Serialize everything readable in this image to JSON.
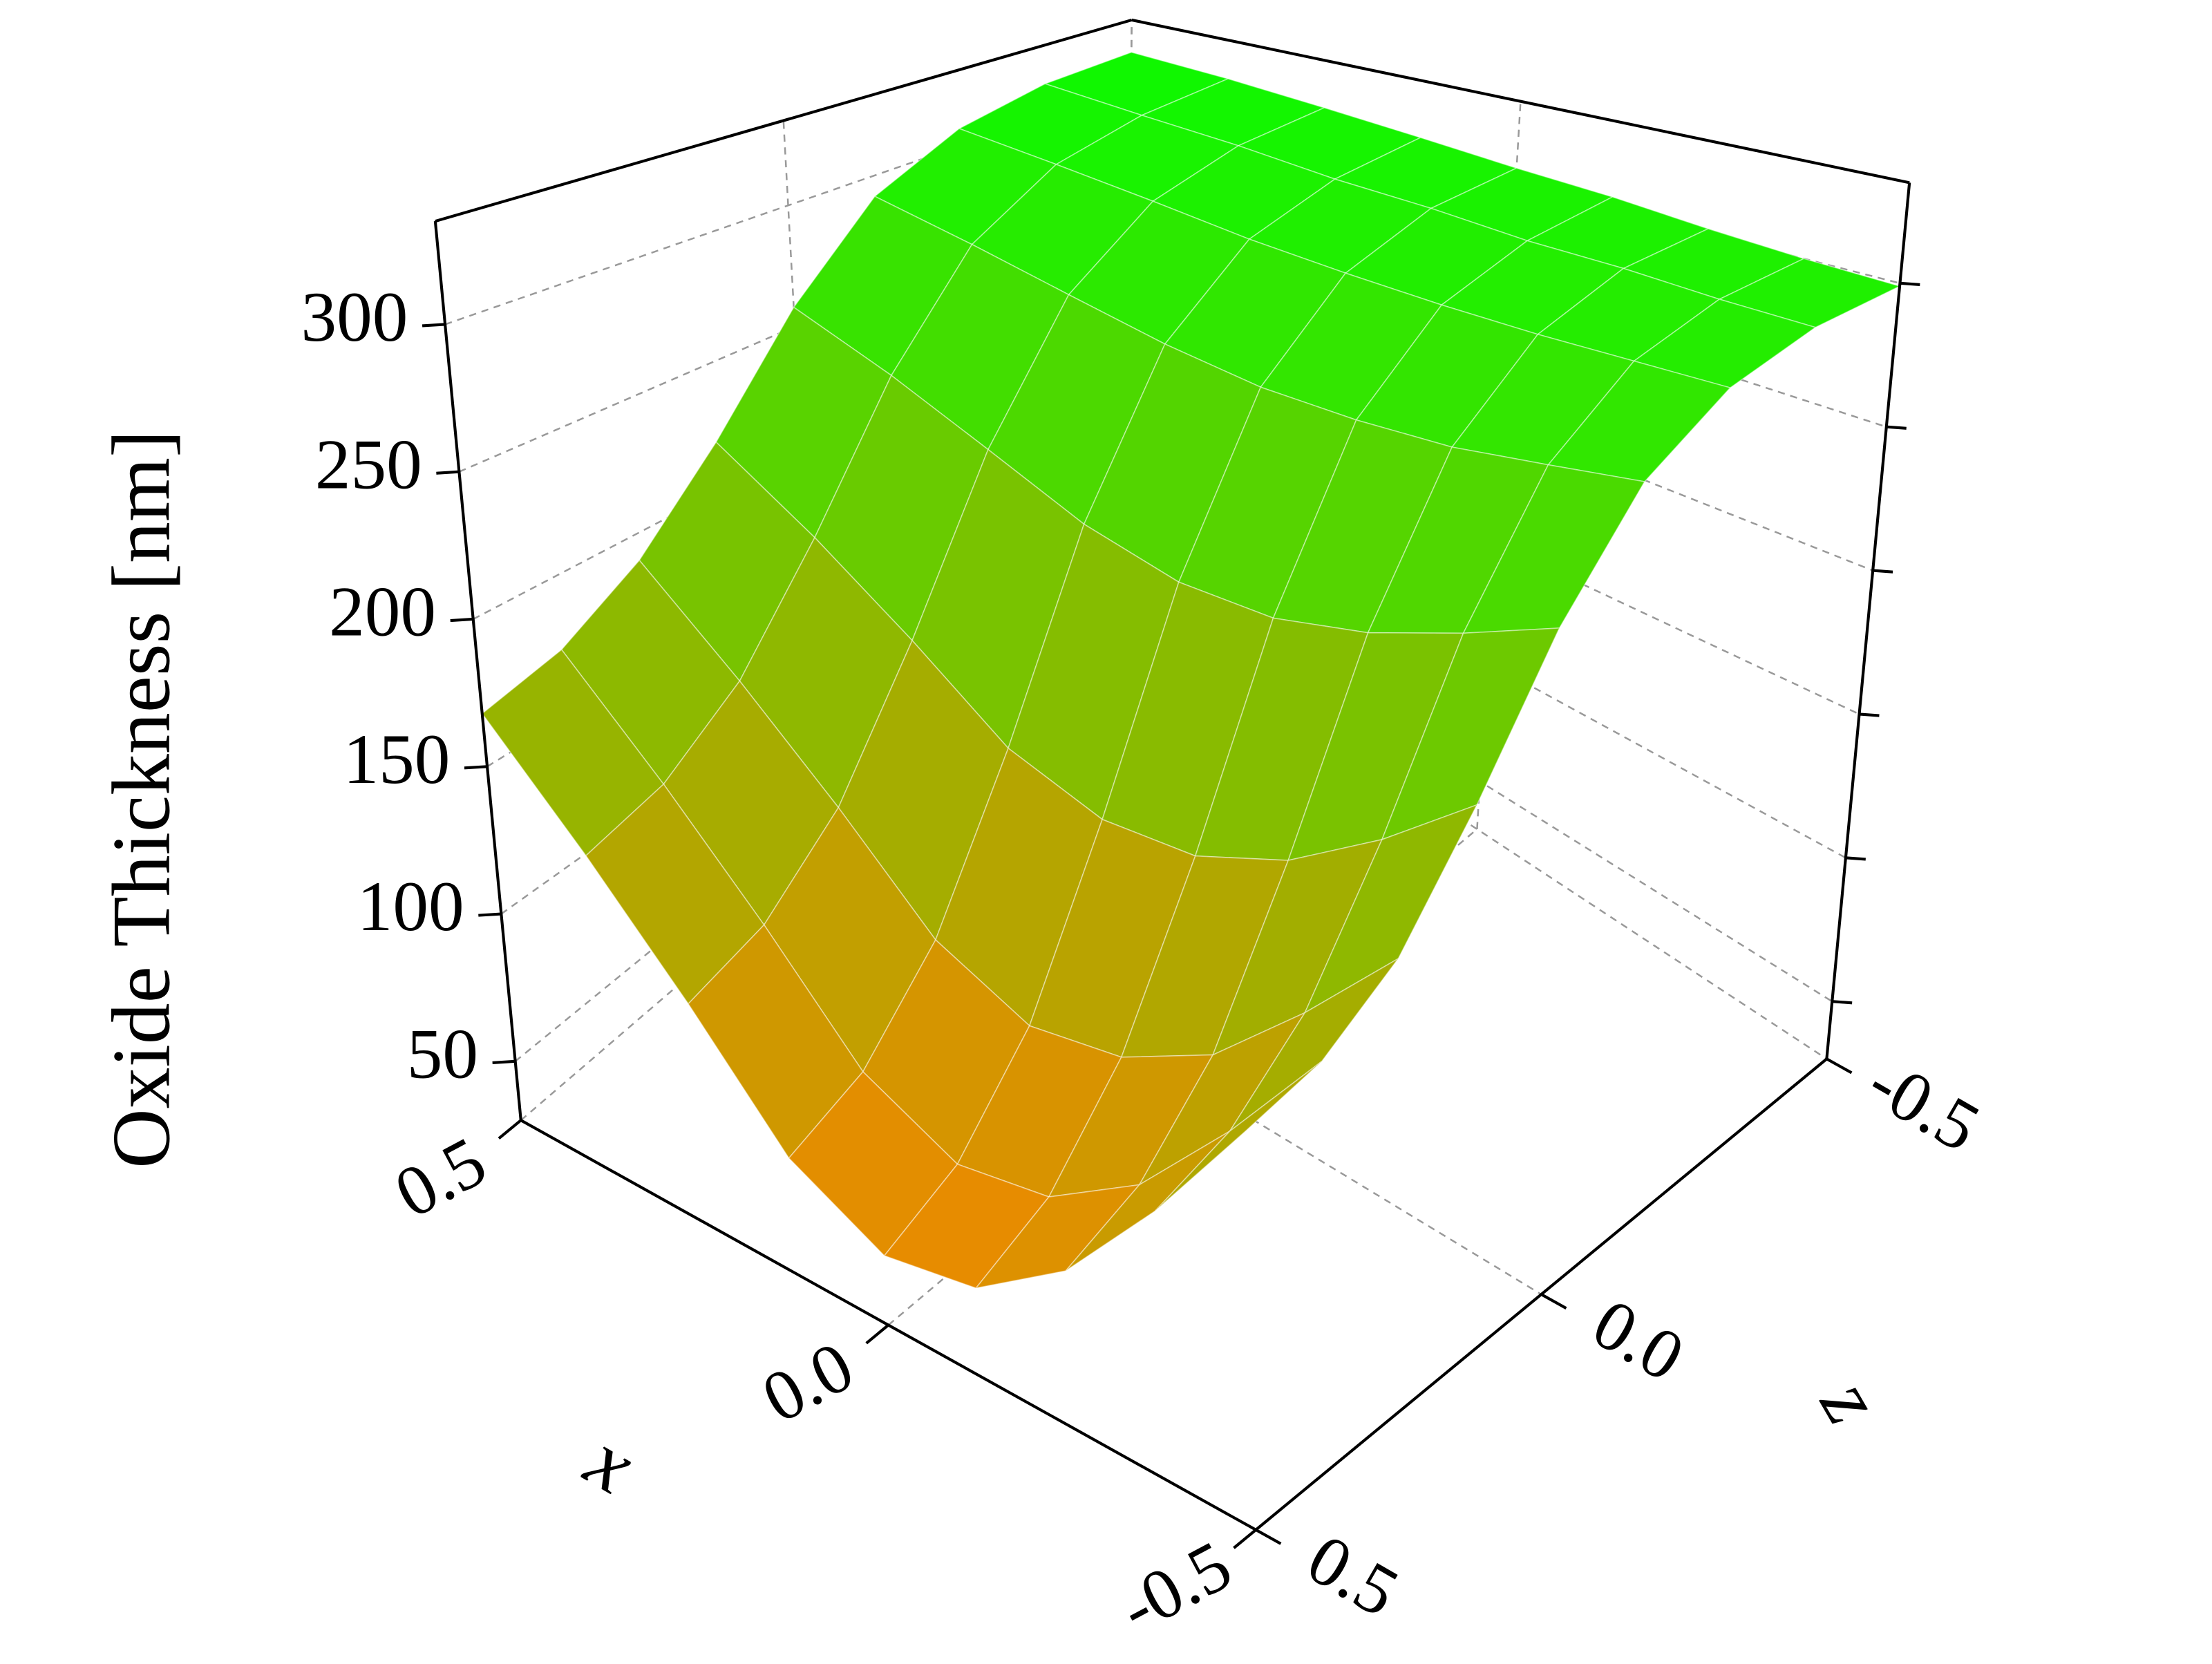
{
  "chart_data": {
    "type": "surface",
    "y_label": "Oxide Thickness [nm]",
    "x_label": "x",
    "z_label": "z",
    "x": [
      -0.5,
      -0.375,
      -0.25,
      -0.125,
      0,
      0.125,
      0.25,
      0.375,
      0.5
    ],
    "z": [
      -0.5,
      -0.375,
      -0.25,
      -0.125,
      0,
      0.125,
      0.25,
      0.375,
      0.5
    ],
    "values": [
      [
        299,
        300,
        302,
        305,
        307,
        310,
        313,
        316,
        318
      ],
      [
        296,
        297,
        299,
        300,
        303,
        305,
        309,
        312,
        316
      ],
      [
        287,
        287,
        287,
        288,
        290,
        293,
        298,
        303,
        308
      ],
      [
        268,
        264,
        260,
        259,
        260,
        265,
        273,
        282,
        291
      ],
      [
        234,
        222,
        211,
        204,
        204,
        212,
        227,
        243,
        258
      ],
      [
        193,
        171,
        152,
        140,
        138,
        148,
        172,
        196,
        219
      ],
      [
        161,
        133,
        107,
        92,
        87,
        100,
        130,
        160,
        190
      ],
      [
        145,
        113,
        84,
        66,
        61,
        75,
        108,
        141,
        174
      ],
      [
        139,
        105,
        75,
        56,
        51,
        66,
        100,
        134,
        168
      ]
    ],
    "xlim": [
      -0.5,
      0.5
    ],
    "zlim": [
      -0.5,
      0.5
    ],
    "ylim": [
      30,
      335
    ],
    "yticks": [
      50,
      100,
      150,
      200,
      250,
      300
    ],
    "xticks": [
      0.5,
      {
        "value": 0,
        "label": "0.0"
      },
      -0.5
    ],
    "zticks": [
      0.5,
      {
        "value": 0,
        "label": "0.0"
      },
      -0.5
    ],
    "colormap": [
      "#ff8000",
      "#00ff00"
    ],
    "grid": true
  }
}
